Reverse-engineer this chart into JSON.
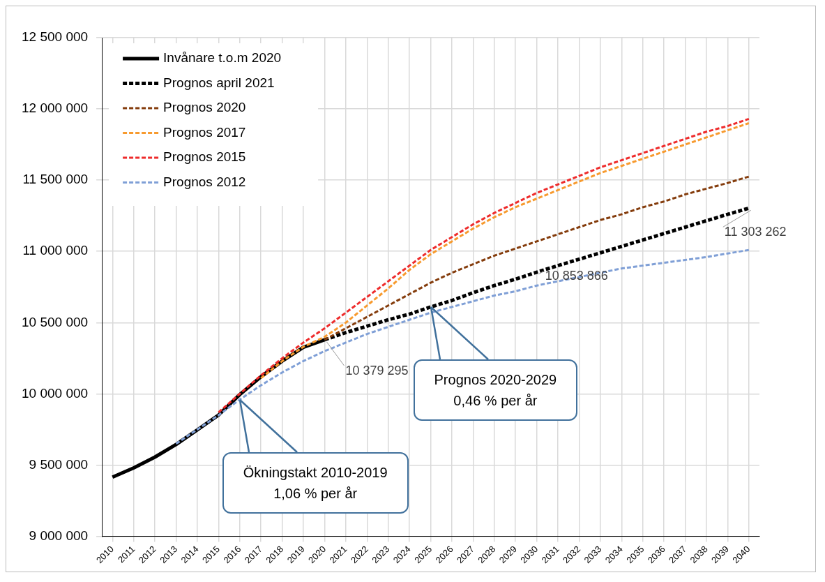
{
  "chart_data": {
    "type": "line",
    "categories": [
      "2010",
      "2011",
      "2012",
      "2013",
      "2014",
      "2015",
      "2016",
      "2017",
      "2018",
      "2019",
      "2020",
      "2021",
      "2022",
      "2023",
      "2024",
      "2025",
      "2026",
      "2027",
      "2028",
      "2029",
      "2030",
      "2031",
      "2032",
      "2033",
      "2034",
      "2035",
      "2036",
      "2037",
      "2038",
      "2039",
      "2040"
    ],
    "series": [
      {
        "name": "Invånare t.o.m 2020",
        "color": "#000000",
        "line_style": "solid",
        "values": [
          9415000,
          9480000,
          9556000,
          9645000,
          9747000,
          9851000,
          9995000,
          10120000,
          10230000,
          10327000,
          10379295,
          null,
          null,
          null,
          null,
          null,
          null,
          null,
          null,
          null,
          null,
          null,
          null,
          null,
          null,
          null,
          null,
          null,
          null,
          null,
          null
        ]
      },
      {
        "name": "Prognos april 2021",
        "color": "#000000",
        "line_style": "dashed",
        "values": [
          null,
          null,
          null,
          null,
          null,
          null,
          null,
          null,
          null,
          null,
          10379295,
          10430000,
          10475000,
          10520000,
          10560000,
          10610000,
          10655000,
          10710000,
          10760000,
          10805000,
          10853866,
          10900000,
          10945000,
          10990000,
          11035000,
          11080000,
          11125000,
          11170000,
          11215000,
          11260000,
          11303262
        ],
        "value_labels": [
          null,
          null,
          null,
          null,
          null,
          null,
          null,
          null,
          null,
          null,
          "10 379 295",
          null,
          null,
          null,
          null,
          null,
          null,
          null,
          null,
          null,
          "10 853 866",
          null,
          null,
          null,
          null,
          null,
          null,
          null,
          null,
          null,
          "11 303 262"
        ]
      },
      {
        "name": "Prognos 2020",
        "color": "#843c0c",
        "line_style": "dashed",
        "values": [
          null,
          null,
          null,
          null,
          null,
          null,
          null,
          null,
          null,
          null,
          10380000,
          10460000,
          10540000,
          10620000,
          10700000,
          10780000,
          10850000,
          10910000,
          10970000,
          11020000,
          11070000,
          11120000,
          11170000,
          11220000,
          11260000,
          11310000,
          11350000,
          11400000,
          11440000,
          11480000,
          11525000
        ]
      },
      {
        "name": "Prognos 2017",
        "color": "#f79a2e",
        "line_style": "dashed",
        "values": [
          null,
          null,
          null,
          null,
          null,
          null,
          null,
          10110000,
          10230000,
          10330000,
          10400000,
          10500000,
          10620000,
          10740000,
          10870000,
          10980000,
          11070000,
          11160000,
          11240000,
          11310000,
          11370000,
          11430000,
          11490000,
          11550000,
          11600000,
          11650000,
          11700000,
          11750000,
          11800000,
          11850000,
          11900000
        ]
      },
      {
        "name": "Prognos 2015",
        "color": "#ee2b2b",
        "line_style": "dashed",
        "values": [
          null,
          null,
          null,
          null,
          null,
          9870000,
          10000000,
          10130000,
          10250000,
          10360000,
          10460000,
          10570000,
          10680000,
          10790000,
          10900000,
          11010000,
          11100000,
          11190000,
          11270000,
          11340000,
          11410000,
          11470000,
          11530000,
          11590000,
          11640000,
          11690000,
          11740000,
          11790000,
          11840000,
          11880000,
          11930000
        ]
      },
      {
        "name": "Prognos 2012",
        "color": "#7f9fd6",
        "line_style": "dashed",
        "values": [
          null,
          null,
          null,
          9650000,
          9750000,
          9850000,
          9960000,
          10060000,
          10150000,
          10230000,
          10300000,
          10360000,
          10420000,
          10470000,
          10520000,
          10570000,
          10610000,
          10650000,
          10690000,
          10720000,
          10760000,
          10790000,
          10820000,
          10850000,
          10880000,
          10900000,
          10920000,
          10940000,
          10960000,
          10985000,
          11010000
        ]
      }
    ],
    "ylim": [
      9000000,
      12500000
    ],
    "yticks": [
      {
        "value": 9000000,
        "label": "9 000 000"
      },
      {
        "value": 9500000,
        "label": "9 500 000"
      },
      {
        "value": 10000000,
        "label": "10 000 000"
      },
      {
        "value": 10500000,
        "label": "10 500 000"
      },
      {
        "value": 11000000,
        "label": "11 000 000"
      },
      {
        "value": 11500000,
        "label": "11 500 000"
      },
      {
        "value": 12000000,
        "label": "12 000 000"
      },
      {
        "value": 12500000,
        "label": "12 500 000"
      }
    ],
    "grid": true,
    "legend": "top left",
    "marker": "none",
    "annotations": [
      {
        "text": "Ökningstakt 2010-2019\n1,06 % per år",
        "x": "2016",
        "y": 9960000
      },
      {
        "text": "Prognos 2020-2029\n0,46 % per år",
        "x": "2025",
        "y": 10610000
      }
    ]
  }
}
